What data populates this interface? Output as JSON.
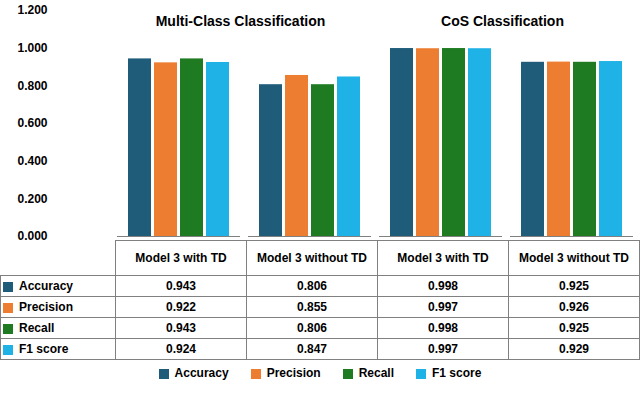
{
  "chart_data": [
    {
      "type": "bar",
      "title": "Multi-Class Classification",
      "categories": [
        "Model 3 with TD",
        "Model 3 without TD"
      ],
      "series": [
        {
          "name": "Accuracy",
          "color": "#1f5c7a",
          "values": [
            0.943,
            0.806
          ]
        },
        {
          "name": "Precision",
          "color": "#ed7d31",
          "values": [
            0.922,
            0.855
          ]
        },
        {
          "name": "Recall",
          "color": "#1e7b22",
          "values": [
            0.943,
            0.806
          ]
        },
        {
          "name": "F1 score",
          "color": "#1fb2e6",
          "values": [
            0.924,
            0.847
          ]
        }
      ],
      "ylim": [
        0,
        1.2
      ],
      "yticks": [
        {
          "value": 0,
          "label": "0.000"
        },
        {
          "value": 0.2,
          "label": "0.200"
        },
        {
          "value": 0.4,
          "label": "0.400"
        },
        {
          "value": 0.6,
          "label": "0.600"
        },
        {
          "value": 0.8,
          "label": "0.800"
        },
        {
          "value": 1,
          "label": "1.000"
        },
        {
          "value": 1.2,
          "label": "1.200"
        }
      ],
      "grid": false
    },
    {
      "type": "bar",
      "title": "CoS Classification",
      "categories": [
        "Model 3 with TD",
        "Model 3 without TD"
      ],
      "series": [
        {
          "name": "Accuracy",
          "color": "#1f5c7a",
          "values": [
            0.998,
            0.925
          ]
        },
        {
          "name": "Precision",
          "color": "#ed7d31",
          "values": [
            0.997,
            0.926
          ]
        },
        {
          "name": "Recall",
          "color": "#1e7b22",
          "values": [
            0.998,
            0.925
          ]
        },
        {
          "name": "F1 score",
          "color": "#1fb2e6",
          "values": [
            0.997,
            0.929
          ]
        }
      ],
      "ylim": [
        0,
        1.2
      ],
      "yticks": [
        {
          "value": 0,
          "label": "0.000"
        },
        {
          "value": 0.2,
          "label": "0.200"
        },
        {
          "value": 0.4,
          "label": "0.400"
        },
        {
          "value": 0.6,
          "label": "0.600"
        },
        {
          "value": 0.8,
          "label": "0.800"
        },
        {
          "value": 1,
          "label": "1.000"
        },
        {
          "value": 1.2,
          "label": "1.200"
        }
      ],
      "grid": false
    }
  ]
}
